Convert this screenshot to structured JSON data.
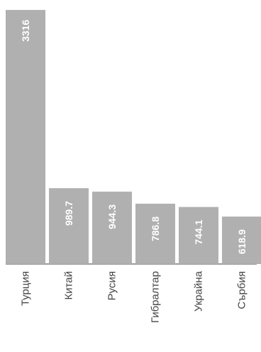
{
  "chart_data": {
    "type": "bar",
    "categories": [
      "Турция",
      "Китай",
      "Русия",
      "Гибралтар",
      "Украйна",
      "Сърбия"
    ],
    "values": [
      3316,
      989.7,
      944.3,
      786.8,
      744.1,
      618.9
    ],
    "value_labels": [
      "3316",
      "989.7",
      "944.3",
      "786.8",
      "744.1",
      "618.9"
    ],
    "ylim": [
      0,
      3316
    ],
    "grid": false,
    "colors": {
      "bar": "#b0b0b0",
      "label_inside": "#ffffff",
      "label_outside": "#6e6e6e",
      "category_label": "#444444",
      "baseline": "#9a9a9a"
    }
  }
}
